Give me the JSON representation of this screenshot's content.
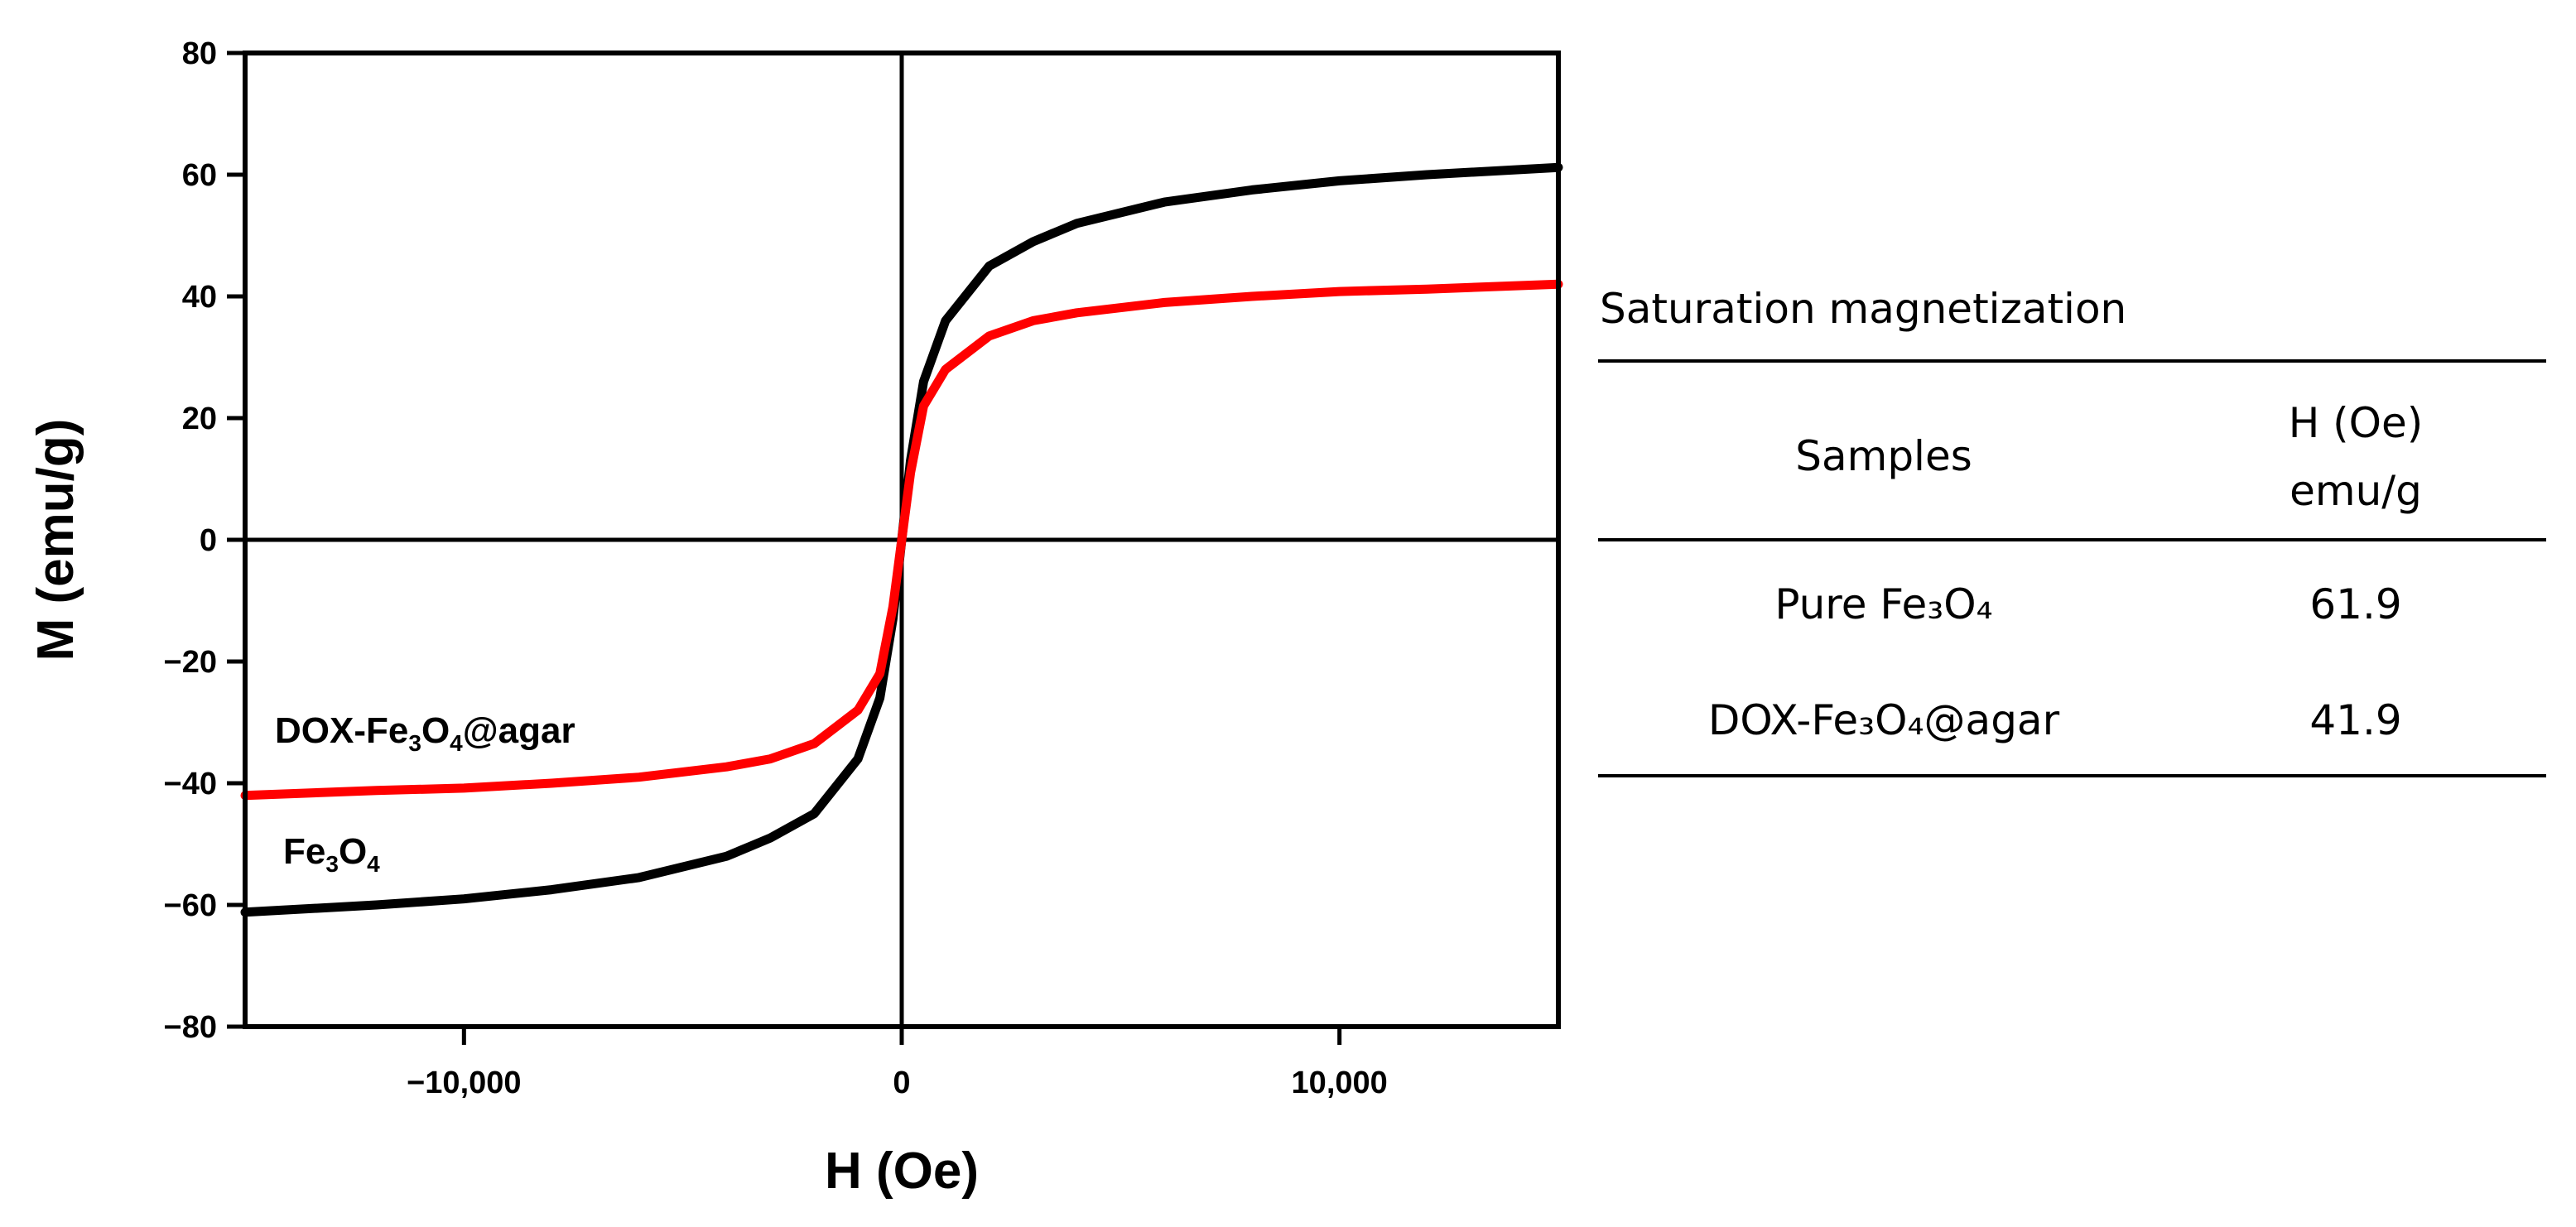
{
  "chart_data": {
    "type": "line",
    "xlabel": "H (Oe)",
    "ylabel": "M (emu/g)",
    "xlim": [
      -15000,
      15000
    ],
    "ylim": [
      -80,
      80
    ],
    "x_ticks": [
      -10000,
      0,
      10000
    ],
    "x_tick_labels": [
      "−10,000",
      "0",
      "10,000"
    ],
    "y_ticks": [
      80,
      60,
      40,
      20,
      0,
      -20,
      -40,
      -60,
      -80
    ],
    "y_tick_labels": [
      "80",
      "60",
      "40",
      "20",
      "0",
      "−20",
      "−40",
      "−60",
      "−80"
    ],
    "grid": false,
    "series": [
      {
        "name": "Fe3O4",
        "label_main": "Fe",
        "label_sub1": "3",
        "label_mid": "O",
        "label_sub2": "4",
        "label_tail": "",
        "color": "#000000",
        "x": [
          -15000,
          -12000,
          -10000,
          -8000,
          -6000,
          -4000,
          -3000,
          -2000,
          -1000,
          -500,
          -200,
          0,
          200,
          500,
          1000,
          2000,
          3000,
          4000,
          6000,
          8000,
          10000,
          12000,
          15000
        ],
        "y": [
          -61.2,
          -60,
          -59,
          -57.5,
          -55.5,
          -52,
          -49,
          -45,
          -36,
          -26,
          -13,
          0,
          13,
          26,
          36,
          45,
          49,
          52,
          55.5,
          57.5,
          59,
          60,
          61.2
        ]
      },
      {
        "name": "DOX-Fe3O4@agar",
        "label_main": "DOX-Fe",
        "label_sub1": "3",
        "label_mid": "O",
        "label_sub2": "4",
        "label_tail": "@agar",
        "color": "#ff0000",
        "x": [
          -15000,
          -12000,
          -10000,
          -8000,
          -6000,
          -4000,
          -3000,
          -2000,
          -1000,
          -500,
          -200,
          0,
          200,
          500,
          1000,
          2000,
          3000,
          4000,
          6000,
          8000,
          10000,
          12000,
          15000
        ],
        "y": [
          -42,
          -41.2,
          -40.8,
          -40,
          -39,
          -37.3,
          -36,
          -33.5,
          -28,
          -22,
          -11,
          0,
          11,
          22,
          28,
          33.5,
          36,
          37.3,
          39,
          40,
          40.8,
          41.2,
          42
        ]
      }
    ]
  },
  "table": {
    "title": "Saturation magnetization",
    "header_col1": "Samples",
    "header_col2_line1": "H (Oe)",
    "header_col2_line2": "emu/g",
    "rows": [
      {
        "sample": "Pure Fe₃O₄",
        "value": "61.9"
      },
      {
        "sample": "DOX-Fe₃O₄@agar",
        "value": "41.9"
      }
    ]
  }
}
